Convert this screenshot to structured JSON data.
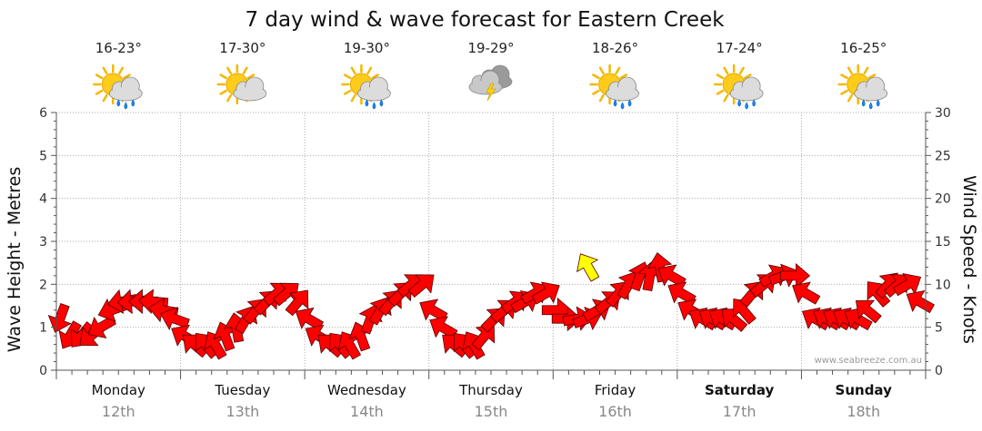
{
  "chart_data": {
    "type": "line",
    "title": "7 day wind & wave forecast for Eastern Creek",
    "ylabel_left": "Wave Height - Metres",
    "ylabel_right": "Wind Speed - Knots",
    "y_left_range": [
      0,
      6
    ],
    "y_right_range": [
      0,
      30
    ],
    "y_left_ticks": [
      "0",
      "1",
      "2",
      "3",
      "4",
      "5",
      "6"
    ],
    "y_right_ticks": [
      "0",
      "5",
      "10",
      "15",
      "20",
      "25",
      "30"
    ],
    "grid": true,
    "credit": "www.seabreeze.com.au",
    "days": [
      {
        "name": "Monday",
        "date": "12th",
        "temp": "16-23°",
        "icon": "sun-cloud-showers-icon",
        "bold": false
      },
      {
        "name": "Tuesday",
        "date": "13th",
        "temp": "17-30°",
        "icon": "sun-cloud-icon",
        "bold": false
      },
      {
        "name": "Wednesday",
        "date": "14th",
        "temp": "19-30°",
        "icon": "sun-cloud-showers-icon",
        "bold": false
      },
      {
        "name": "Thursday",
        "date": "15th",
        "temp": "19-29°",
        "icon": "cloud-thunderstorm-icon",
        "bold": false
      },
      {
        "name": "Friday",
        "date": "16th",
        "temp": "18-26°",
        "icon": "sun-cloud-showers-icon",
        "bold": false
      },
      {
        "name": "Saturday",
        "date": "17th",
        "temp": "17-24°",
        "icon": "sun-cloud-showers-icon",
        "bold": true
      },
      {
        "name": "Sunday",
        "date": "18th",
        "temp": "16-25°",
        "icon": "sun-cloud-showers-icon",
        "bold": true
      }
    ],
    "series": [
      {
        "values_day_offset": [
          0.0,
          0.08,
          0.17,
          0.25,
          0.33,
          0.42,
          0.5,
          0.58,
          0.67,
          0.75,
          0.83,
          0.92,
          1.0,
          1.08,
          1.17,
          1.25,
          1.33,
          1.42,
          1.5,
          1.58,
          1.67,
          1.75,
          1.83,
          1.92,
          2.0,
          2.08,
          2.17,
          2.25,
          2.33,
          2.42,
          2.5,
          2.58,
          2.67,
          2.75,
          2.83,
          2.92,
          3.0,
          3.08,
          3.17,
          3.25,
          3.33,
          3.42,
          3.5,
          3.58,
          3.67,
          3.75,
          3.83,
          3.92,
          4.0,
          4.08,
          4.17,
          4.25,
          4.33,
          4.42,
          4.5,
          4.58,
          4.67,
          4.75,
          4.83,
          4.92,
          5.0,
          5.08,
          5.17,
          5.25,
          5.33,
          5.42,
          5.5,
          5.58,
          5.67,
          5.75,
          5.83,
          5.92,
          6.0,
          6.08,
          6.17,
          6.25,
          6.33,
          6.42,
          6.5,
          6.58,
          6.67,
          6.75,
          6.83,
          6.92
        ],
        "wind_knots": [
          6,
          4,
          4,
          4,
          5,
          7,
          8,
          8,
          8,
          8,
          7,
          6,
          4,
          3,
          3,
          3,
          4,
          5,
          6,
          7,
          8,
          9,
          9,
          8,
          6,
          4,
          3,
          3,
          3,
          4,
          6,
          7,
          8,
          9,
          10,
          10,
          7,
          5,
          3,
          3,
          3,
          4,
          6,
          7,
          8,
          8,
          9,
          9,
          7,
          6,
          6,
          6,
          7,
          8,
          9,
          10,
          11,
          11,
          12,
          11,
          9,
          7,
          6,
          6,
          6,
          6,
          7,
          9,
          10,
          11,
          11,
          11,
          9,
          6,
          6,
          6,
          6,
          6,
          7,
          9,
          10,
          10,
          10,
          8
        ],
        "wind_dir_deg": [
          200,
          210,
          220,
          230,
          240,
          250,
          260,
          265,
          270,
          275,
          280,
          290,
          300,
          310,
          320,
          330,
          340,
          350,
          30,
          40,
          45,
          50,
          50,
          40,
          300,
          300,
          310,
          320,
          330,
          340,
          20,
          30,
          40,
          45,
          50,
          50,
          300,
          300,
          310,
          320,
          330,
          40,
          45,
          50,
          55,
          60,
          60,
          60,
          90,
          90,
          80,
          70,
          60,
          50,
          40,
          30,
          20,
          10,
          350,
          300,
          300,
          300,
          300,
          300,
          300,
          310,
          320,
          40,
          50,
          60,
          70,
          90,
          300,
          300,
          300,
          300,
          300,
          300,
          310,
          320,
          40,
          50,
          60,
          300
        ]
      }
    ],
    "highlight_arrow": {
      "day_offset": 4.25,
      "wind_knots": 12.5,
      "color": "#ffff00"
    }
  }
}
